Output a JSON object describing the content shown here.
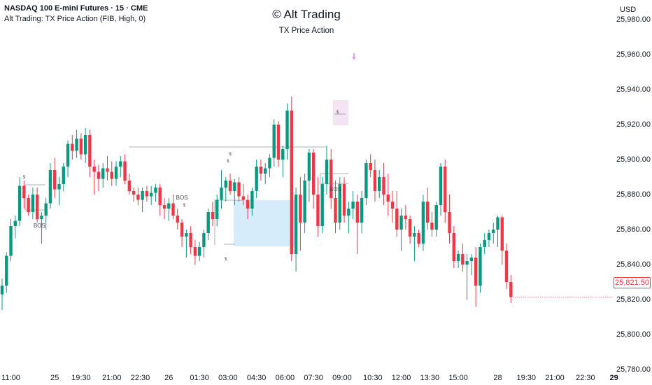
{
  "header": {
    "symbol": "NASDAQ 100 E-mini Futures · 15 · CME",
    "indicator": "Alt Trading: TX Price Action (FIB, High, 0)"
  },
  "watermark": {
    "title": "© Alt Trading",
    "subtitle": "TX Price Action"
  },
  "currency": "USD",
  "last_price": "25,821.50",
  "colors": {
    "up": "#089981",
    "down": "#f23645",
    "zone_demand": "#d6ecfb",
    "zone_supply": "#f3e3f3",
    "arrow_up": "#9ecdf0",
    "arrow_down": "#d9a6e6"
  },
  "annotations": [
    {
      "text": "BOS",
      "x": 8.5,
      "y": 25862
    },
    {
      "text": "BOS",
      "x": 41,
      "y": 25878
    },
    {
      "text": "BOS",
      "x": 76,
      "y": 25883
    },
    {
      "text": "$",
      "x": 5,
      "y": 25889,
      "small": true
    },
    {
      "text": "$",
      "x": 52,
      "y": 25902,
      "small": true
    },
    {
      "text": "$",
      "x": 76.5,
      "y": 25926,
      "small": true
    },
    {
      "text": "$",
      "x": 41.5,
      "y": 25873,
      "small": true
    },
    {
      "text": "$",
      "x": 51,
      "y": 25842,
      "small": true
    },
    {
      "text": "$",
      "x": 51.5,
      "y": 25898,
      "small": true
    }
  ],
  "chart_data": {
    "type": "candlestick",
    "title": "NASDAQ 100 E-mini Futures · 15 · CME",
    "y_axis": {
      "ticks": [
        25780,
        25800,
        25820,
        25840,
        25860,
        25880,
        25900,
        25920,
        25940,
        25960,
        25980
      ],
      "tick_labels": [
        "25,780.00",
        "25,800.00",
        "25,820.00",
        "25,840.00",
        "25,860.00",
        "25,880.00",
        "25,900.00",
        "25,920.00",
        "25,940.00",
        "25,960.00",
        "25,980.00"
      ],
      "range": [
        25770,
        25985
      ]
    },
    "x_axis": {
      "tick_labels": [
        {
          "label": "11:00",
          "x": 2
        },
        {
          "label": "25",
          "x": 12,
          "bold": false
        },
        {
          "label": "19:30",
          "x": 18
        },
        {
          "label": "21:00",
          "x": 25
        },
        {
          "label": "22:30",
          "x": 31.5
        },
        {
          "label": "26",
          "x": 38
        },
        {
          "label": "01:30",
          "x": 45
        },
        {
          "label": "03:00",
          "x": 51.5
        },
        {
          "label": "04:30",
          "x": 58
        },
        {
          "label": "06:00",
          "x": 64.5
        },
        {
          "label": "07:30",
          "x": 71
        },
        {
          "label": "09:00",
          "x": 77.5
        },
        {
          "label": "10:30",
          "x": 84.5
        },
        {
          "label": "12:00",
          "x": 91
        },
        {
          "label": "13:30",
          "x": 97.5
        },
        {
          "label": "15:00",
          "x": 104
        },
        {
          "label": "28",
          "x": 113
        },
        {
          "label": "19:30",
          "x": 119.5
        },
        {
          "label": "21:00",
          "x": 126
        },
        {
          "label": "22:30",
          "x": 133
        },
        {
          "label": "29",
          "x": 139.5,
          "bold": true
        }
      ]
    },
    "candles": [
      [
        25823,
        25832,
        25814,
        25828
      ],
      [
        25828,
        25847,
        25824,
        25845
      ],
      [
        25845,
        25866,
        25842,
        25862
      ],
      [
        25862,
        25868,
        25855,
        25865
      ],
      [
        25865,
        25890,
        25862,
        25885
      ],
      [
        25885,
        25888,
        25872,
        25878
      ],
      [
        25878,
        25880,
        25868,
        25870
      ],
      [
        25870,
        25884,
        25866,
        25880
      ],
      [
        25880,
        25884,
        25864,
        25866
      ],
      [
        25866,
        25870,
        25852,
        25868
      ],
      [
        25868,
        25878,
        25860,
        25875
      ],
      [
        25875,
        25898,
        25872,
        25894
      ],
      [
        25894,
        25901,
        25878,
        25883
      ],
      [
        25883,
        25890,
        25874,
        25886
      ],
      [
        25886,
        25898,
        25882,
        25896
      ],
      [
        25896,
        25911,
        25890,
        25909
      ],
      [
        25909,
        25914,
        25900,
        25905
      ],
      [
        25905,
        25917,
        25901,
        25912
      ],
      [
        25912,
        25915,
        25900,
        25903
      ],
      [
        25903,
        25918,
        25898,
        25914
      ],
      [
        25914,
        25917,
        25890,
        25896
      ],
      [
        25896,
        25900,
        25880,
        25893
      ],
      [
        25893,
        25897,
        25882,
        25889
      ],
      [
        25889,
        25898,
        25884,
        25895
      ],
      [
        25895,
        25902,
        25888,
        25893
      ],
      [
        25893,
        25899,
        25885,
        25889
      ],
      [
        25889,
        25899,
        25885,
        25896
      ],
      [
        25896,
        25902,
        25890,
        25899
      ],
      [
        25899,
        25903,
        25886,
        25888
      ],
      [
        25888,
        25892,
        25880,
        25882
      ],
      [
        25882,
        25884,
        25876,
        25880
      ],
      [
        25880,
        25884,
        25874,
        25877
      ],
      [
        25877,
        25884,
        25870,
        25882
      ],
      [
        25882,
        25885,
        25876,
        25879
      ],
      [
        25879,
        25885,
        25874,
        25881
      ],
      [
        25881,
        25886,
        25876,
        25884
      ],
      [
        25884,
        25886,
        25868,
        25874
      ],
      [
        25874,
        25878,
        25866,
        25872
      ],
      [
        25872,
        25878,
        25865,
        25875
      ],
      [
        25875,
        25880,
        25866,
        25868
      ],
      [
        25868,
        25872,
        25860,
        25864
      ],
      [
        25864,
        25866,
        25850,
        25856
      ],
      [
        25856,
        25860,
        25844,
        25858
      ],
      [
        25858,
        25862,
        25846,
        25850
      ],
      [
        25850,
        25854,
        25840,
        25845
      ],
      [
        25845,
        25853,
        25842,
        25850
      ],
      [
        25850,
        25860,
        25844,
        25858
      ],
      [
        25858,
        25872,
        25854,
        25870
      ],
      [
        25870,
        25876,
        25862,
        25866
      ],
      [
        25866,
        25880,
        25862,
        25877
      ],
      [
        25877,
        25894,
        25872,
        25884
      ],
      [
        25884,
        25890,
        25876,
        25888
      ],
      [
        25888,
        25892,
        25880,
        25882
      ],
      [
        25882,
        25889,
        25874,
        25887
      ],
      [
        25887,
        25890,
        25876,
        25879
      ],
      [
        25879,
        25886,
        25874,
        25877
      ],
      [
        25877,
        25880,
        25866,
        25872
      ],
      [
        25872,
        25884,
        25868,
        25882
      ],
      [
        25882,
        25900,
        25878,
        25896
      ],
      [
        25896,
        25900,
        25888,
        25892
      ],
      [
        25892,
        25898,
        25886,
        25895
      ],
      [
        25895,
        25903,
        25890,
        25901
      ],
      [
        25901,
        25923,
        25896,
        25920
      ],
      [
        25920,
        25922,
        25896,
        25900
      ],
      [
        25900,
        25908,
        25890,
        25906
      ],
      [
        25906,
        25932,
        25900,
        25928
      ],
      [
        25928,
        25936,
        25842,
        25846
      ],
      [
        25846,
        25884,
        25836,
        25880
      ],
      [
        25880,
        25890,
        25848,
        25864
      ],
      [
        25864,
        25892,
        25858,
        25888
      ],
      [
        25888,
        25906,
        25876,
        25904
      ],
      [
        25904,
        25906,
        25872,
        25880
      ],
      [
        25880,
        25890,
        25856,
        25862
      ],
      [
        25862,
        25890,
        25858,
        25886
      ],
      [
        25886,
        25908,
        25880,
        25900
      ],
      [
        25900,
        25906,
        25872,
        25878
      ],
      [
        25878,
        25888,
        25858,
        25864
      ],
      [
        25864,
        25890,
        25860,
        25886
      ],
      [
        25886,
        25890,
        25864,
        25868
      ],
      [
        25868,
        25876,
        25858,
        25872
      ],
      [
        25872,
        25882,
        25866,
        25876
      ],
      [
        25876,
        25880,
        25846,
        25864
      ],
      [
        25864,
        25882,
        25858,
        25878
      ],
      [
        25878,
        25900,
        25874,
        25898
      ],
      [
        25898,
        25903,
        25890,
        25894
      ],
      [
        25894,
        25900,
        25876,
        25882
      ],
      [
        25882,
        25894,
        25878,
        25890
      ],
      [
        25890,
        25898,
        25874,
        25880
      ],
      [
        25880,
        25892,
        25868,
        25876
      ],
      [
        25876,
        25882,
        25864,
        25872
      ],
      [
        25872,
        25882,
        25856,
        25860
      ],
      [
        25860,
        25872,
        25848,
        25868
      ],
      [
        25868,
        25874,
        25860,
        25866
      ],
      [
        25866,
        25868,
        25852,
        25856
      ],
      [
        25856,
        25862,
        25842,
        25858
      ],
      [
        25858,
        25860,
        25850,
        25852
      ],
      [
        25852,
        25880,
        25848,
        25876
      ],
      [
        25876,
        25884,
        25860,
        25864
      ],
      [
        25864,
        25870,
        25856,
        25860
      ],
      [
        25860,
        25876,
        25856,
        25874
      ],
      [
        25874,
        25898,
        25868,
        25896
      ],
      [
        25896,
        25900,
        25864,
        25870
      ],
      [
        25870,
        25880,
        25852,
        25858
      ],
      [
        25858,
        25862,
        25838,
        25842
      ],
      [
        25842,
        25848,
        25838,
        25846
      ],
      [
        25846,
        25852,
        25836,
        25840
      ],
      [
        25840,
        25846,
        25820,
        25842
      ],
      [
        25842,
        25846,
        25834,
        25844
      ],
      [
        25844,
        25850,
        25816,
        25828
      ],
      [
        25828,
        25852,
        25824,
        25850
      ],
      [
        25850,
        25858,
        25846,
        25854
      ],
      [
        25854,
        25860,
        25850,
        25858
      ],
      [
        25858,
        25864,
        25852,
        25860
      ],
      [
        25860,
        25868,
        25850,
        25867
      ],
      [
        25867,
        25868,
        25840,
        25848
      ],
      [
        25848,
        25852,
        25826,
        25830
      ],
      [
        25830,
        25834,
        25818,
        25821.5
      ]
    ]
  }
}
